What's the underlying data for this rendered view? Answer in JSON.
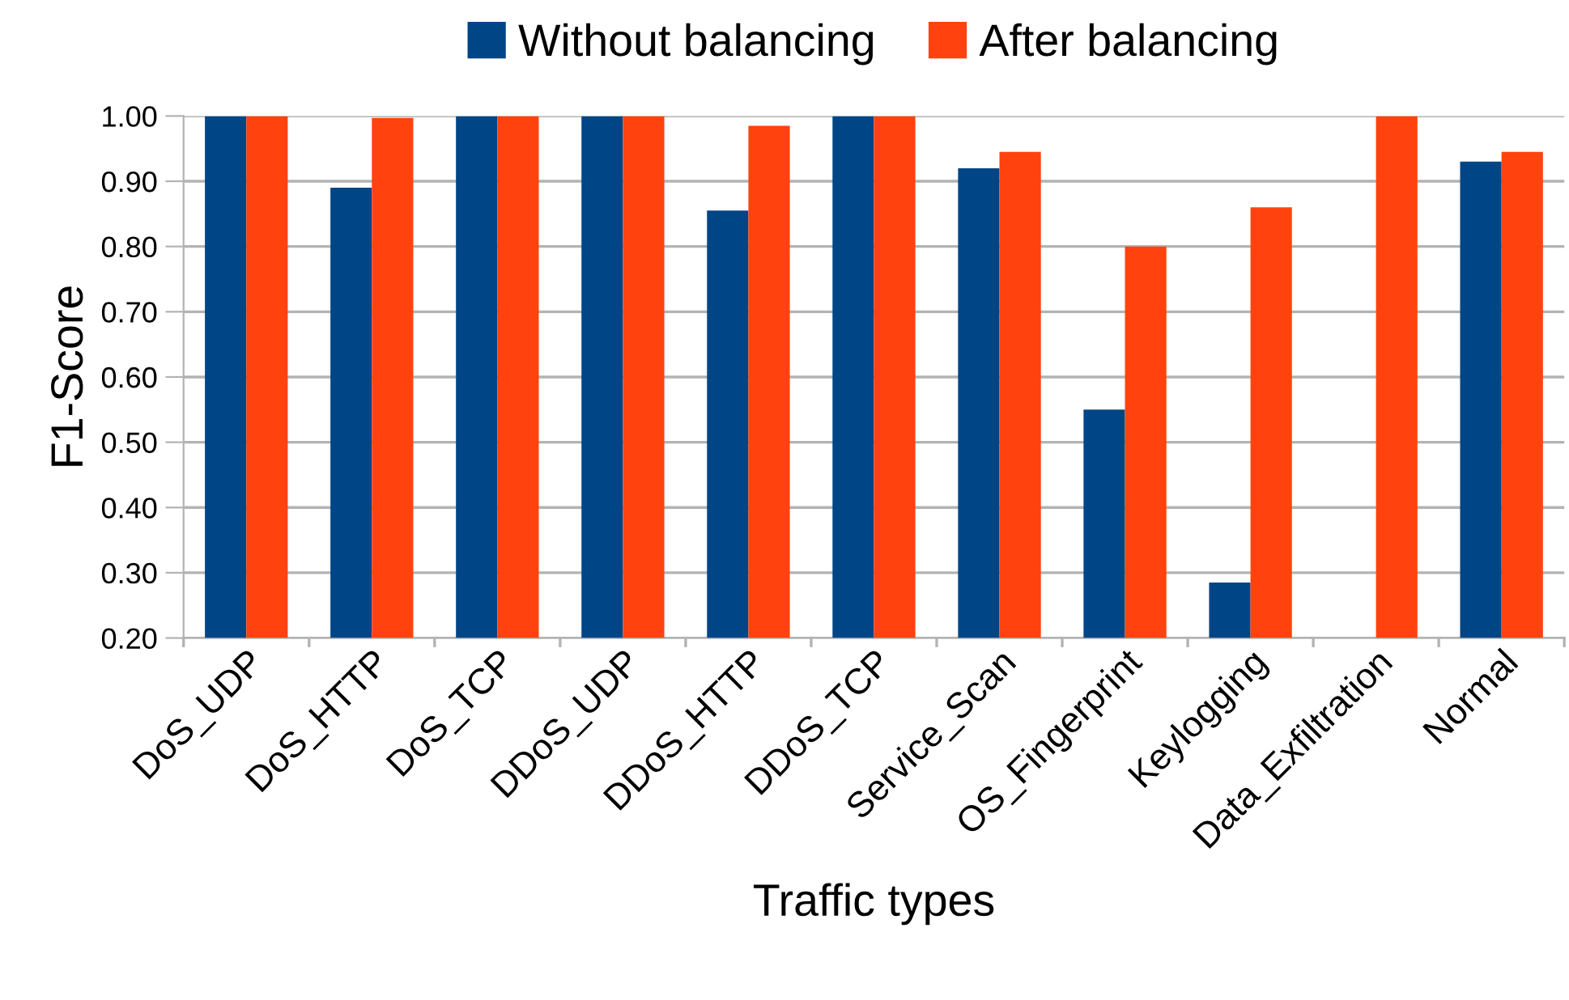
{
  "chart_data": {
    "type": "bar",
    "xlabel": "Traffic types",
    "ylabel": "F1-Score",
    "categories": [
      "DoS_UDP",
      "DoS_HTTP",
      "DoS_TCP",
      "DDoS_UDP",
      "DDoS_HTTP",
      "DDoS_TCP",
      "Service_Scan",
      "OS_Fingerprint",
      "Keylogging",
      "Data_Exfiltration",
      "Normal"
    ],
    "series": [
      {
        "name": "Without balancing",
        "color": "#004586",
        "values": [
          1.0,
          0.89,
          1.0,
          1.0,
          0.855,
          1.0,
          0.92,
          0.55,
          0.285,
          null,
          0.93
        ]
      },
      {
        "name": "After balancing",
        "color": "#ff420e",
        "values": [
          1.0,
          0.997,
          1.0,
          1.0,
          0.985,
          1.0,
          0.945,
          0.8,
          0.86,
          1.0,
          0.945
        ]
      }
    ],
    "ylim": [
      0.2,
      1.0
    ],
    "yticks": [
      {
        "value": 0.2,
        "label": "0.20"
      },
      {
        "value": 0.3,
        "label": "0.30"
      },
      {
        "value": 0.4,
        "label": "0.40"
      },
      {
        "value": 0.5,
        "label": "0.50"
      },
      {
        "value": 0.6,
        "label": "0.60"
      },
      {
        "value": 0.7,
        "label": "0.70"
      },
      {
        "value": 0.8,
        "label": "0.80"
      },
      {
        "value": 0.9,
        "label": "0.90"
      },
      {
        "value": 1.0,
        "label": "1.00"
      }
    ],
    "grid": "y",
    "legend": "top"
  }
}
